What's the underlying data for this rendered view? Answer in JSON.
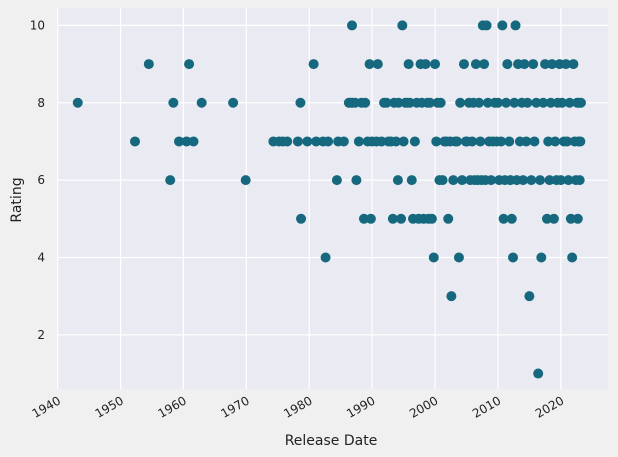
{
  "chart_data": {
    "type": "scatter",
    "title": "",
    "xlabel": "Release Date",
    "ylabel": "Rating",
    "x_ticks": [
      "1940",
      "1950",
      "1960",
      "1970",
      "1980",
      "1990",
      "2000",
      "2010",
      "2020"
    ],
    "y_ticks": [
      2,
      4,
      6,
      8,
      10
    ],
    "xlim": [
      1939.9,
      2027.5
    ],
    "ylim": [
      0.6,
      10.45
    ],
    "grid": true,
    "colors": {
      "background": "#eaeaf2",
      "figure": "#f0f0f0",
      "grid": "#ffffff",
      "marker": "#15687e"
    },
    "series": [
      {
        "points": [
          [
            1943.2,
            8
          ],
          [
            1952.3,
            7
          ],
          [
            1954.5,
            9
          ],
          [
            1957.9,
            6
          ],
          [
            1958.4,
            8
          ],
          [
            1959.3,
            7
          ],
          [
            1960.5,
            7
          ],
          [
            1960.9,
            9
          ],
          [
            1961.6,
            7
          ],
          [
            1962.9,
            8
          ],
          [
            1967.9,
            8
          ],
          [
            1969.9,
            6
          ],
          [
            1974.3,
            7
          ],
          [
            1975.2,
            7
          ],
          [
            1975.8,
            7
          ],
          [
            1976.5,
            7
          ],
          [
            1978.2,
            7
          ],
          [
            1978.6,
            8
          ],
          [
            1978.7,
            5
          ],
          [
            1979.7,
            7
          ],
          [
            1980.7,
            9
          ],
          [
            1981.1,
            7
          ],
          [
            1982.2,
            7
          ],
          [
            1982.6,
            4
          ],
          [
            1983.0,
            7
          ],
          [
            1984.4,
            6
          ],
          [
            1984.6,
            7
          ],
          [
            1985.5,
            7
          ],
          [
            1986.3,
            8
          ],
          [
            1986.8,
            10
          ],
          [
            1986.6,
            8
          ],
          [
            1986.9,
            8
          ],
          [
            1987.3,
            8
          ],
          [
            1987.5,
            6
          ],
          [
            1987.9,
            7
          ],
          [
            1988.3,
            8
          ],
          [
            1988.7,
            5
          ],
          [
            1988.9,
            8
          ],
          [
            1989.3,
            7
          ],
          [
            1989.6,
            9
          ],
          [
            1989.8,
            5
          ],
          [
            1990.0,
            7
          ],
          [
            1990.7,
            7
          ],
          [
            1990.9,
            9
          ],
          [
            1991.5,
            7
          ],
          [
            1991.9,
            8
          ],
          [
            1992.3,
            8
          ],
          [
            1992.6,
            7
          ],
          [
            1993.0,
            7
          ],
          [
            1993.3,
            5
          ],
          [
            1993.5,
            8
          ],
          [
            1993.8,
            7
          ],
          [
            1994.1,
            6
          ],
          [
            1994.2,
            8
          ],
          [
            1994.6,
            5
          ],
          [
            1994.8,
            10
          ],
          [
            1995.0,
            7
          ],
          [
            1995.3,
            8
          ],
          [
            1995.6,
            8
          ],
          [
            1995.8,
            9
          ],
          [
            1996.0,
            8
          ],
          [
            1996.3,
            6
          ],
          [
            1996.5,
            5
          ],
          [
            1996.8,
            7
          ],
          [
            1997.1,
            8
          ],
          [
            1997.4,
            5
          ],
          [
            1997.7,
            9
          ],
          [
            1997.9,
            8
          ],
          [
            1998.2,
            5
          ],
          [
            1998.5,
            9
          ],
          [
            1998.8,
            8
          ],
          [
            1999.0,
            5
          ],
          [
            1999.2,
            8
          ],
          [
            1999.5,
            5
          ],
          [
            1999.8,
            4
          ],
          [
            2000.0,
            9
          ],
          [
            2000.2,
            7
          ],
          [
            2000.4,
            8
          ],
          [
            2000.7,
            6
          ],
          [
            2000.9,
            8
          ],
          [
            2001.2,
            6
          ],
          [
            2001.5,
            7
          ],
          [
            2001.8,
            7
          ],
          [
            2002.1,
            5
          ],
          [
            2002.4,
            7
          ],
          [
            2002.6,
            3
          ],
          [
            2002.9,
            6
          ],
          [
            2003.2,
            7
          ],
          [
            2003.5,
            7
          ],
          [
            2003.8,
            4
          ],
          [
            2004.0,
            8
          ],
          [
            2004.3,
            6
          ],
          [
            2004.6,
            9
          ],
          [
            2004.9,
            7
          ],
          [
            2005.1,
            7
          ],
          [
            2005.4,
            8
          ],
          [
            2005.6,
            6
          ],
          [
            2005.9,
            7
          ],
          [
            2006.1,
            8
          ],
          [
            2006.3,
            6
          ],
          [
            2006.5,
            9
          ],
          [
            2006.8,
            6
          ],
          [
            2007.0,
            8
          ],
          [
            2007.2,
            7
          ],
          [
            2007.4,
            6
          ],
          [
            2007.6,
            10
          ],
          [
            2007.8,
            9
          ],
          [
            2008.0,
            6
          ],
          [
            2008.2,
            10
          ],
          [
            2008.4,
            8
          ],
          [
            2008.6,
            7
          ],
          [
            2008.9,
            6
          ],
          [
            2009.2,
            7
          ],
          [
            2009.5,
            8
          ],
          [
            2009.8,
            7
          ],
          [
            2010.0,
            8
          ],
          [
            2010.2,
            6
          ],
          [
            2010.5,
            7
          ],
          [
            2010.7,
            10
          ],
          [
            2010.9,
            5
          ],
          [
            2011.1,
            6
          ],
          [
            2011.3,
            8
          ],
          [
            2011.5,
            9
          ],
          [
            2011.8,
            7
          ],
          [
            2012.0,
            6
          ],
          [
            2012.2,
            5
          ],
          [
            2012.4,
            4
          ],
          [
            2012.6,
            8
          ],
          [
            2012.8,
            10
          ],
          [
            2013.0,
            6
          ],
          [
            2013.2,
            9
          ],
          [
            2013.5,
            7
          ],
          [
            2013.8,
            8
          ],
          [
            2014.0,
            6
          ],
          [
            2014.2,
            9
          ],
          [
            2014.5,
            7
          ],
          [
            2014.7,
            8
          ],
          [
            2015.0,
            3
          ],
          [
            2015.3,
            6
          ],
          [
            2015.6,
            9
          ],
          [
            2015.8,
            7
          ],
          [
            2016.1,
            8
          ],
          [
            2016.4,
            1
          ],
          [
            2016.7,
            6
          ],
          [
            2016.9,
            4
          ],
          [
            2017.2,
            8
          ],
          [
            2017.5,
            9
          ],
          [
            2017.8,
            5
          ],
          [
            2018.0,
            7
          ],
          [
            2018.2,
            6
          ],
          [
            2018.4,
            8
          ],
          [
            2018.6,
            9
          ],
          [
            2018.9,
            5
          ],
          [
            2019.1,
            7
          ],
          [
            2019.3,
            6
          ],
          [
            2019.5,
            8
          ],
          [
            2019.8,
            9
          ],
          [
            2020.0,
            6
          ],
          [
            2020.2,
            8
          ],
          [
            2020.5,
            7
          ],
          [
            2020.8,
            9
          ],
          [
            2021.0,
            7
          ],
          [
            2021.2,
            6
          ],
          [
            2021.4,
            8
          ],
          [
            2021.6,
            5
          ],
          [
            2021.8,
            4
          ],
          [
            2022.0,
            9
          ],
          [
            2022.2,
            7
          ],
          [
            2022.4,
            6
          ],
          [
            2022.6,
            8
          ],
          [
            2022.7,
            5
          ],
          [
            2022.8,
            7
          ],
          [
            2022.9,
            8
          ],
          [
            2023.0,
            6
          ],
          [
            2023.1,
            7
          ],
          [
            2023.2,
            8
          ]
        ]
      }
    ]
  }
}
